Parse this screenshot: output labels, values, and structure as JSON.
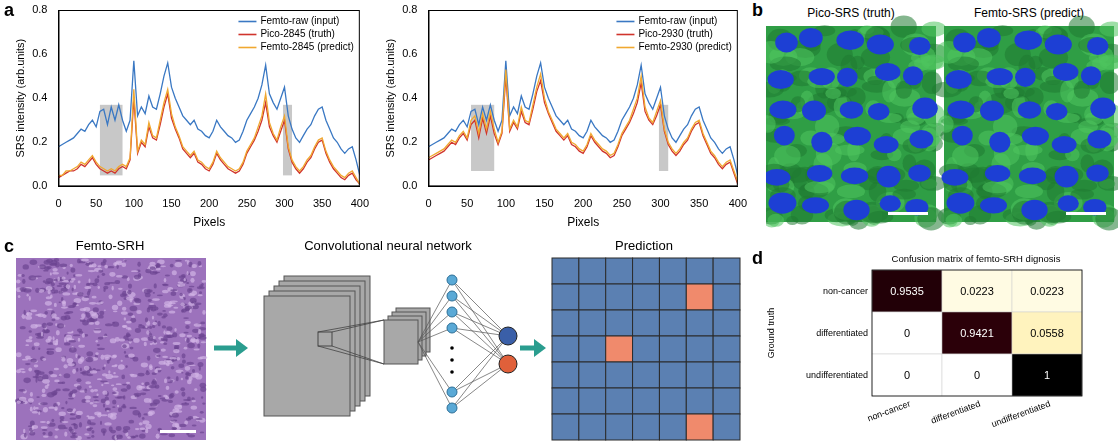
{
  "chart_data": [
    {
      "panel": "a",
      "type": "line",
      "xlabel": "Pixels",
      "ylabel": "SRS intensity (arb.units)",
      "xlim": [
        0,
        400
      ],
      "xticks": [
        0,
        50,
        100,
        150,
        200,
        250,
        300,
        350,
        400
      ],
      "ylim": [
        0,
        0.8
      ],
      "yticks": [
        {
          "value": 0,
          "label": "0.0"
        },
        0.2,
        0.4,
        0.6,
        0.8
      ],
      "grid": false,
      "legend": "upper right",
      "highlight_regions": [
        {
          "x": [
            55,
            85
          ],
          "y": [
            0.05,
            0.37
          ]
        },
        {
          "x": [
            298,
            310
          ],
          "y": [
            0.05,
            0.37
          ]
        }
      ],
      "x": [
        0,
        5,
        10,
        15,
        20,
        25,
        30,
        35,
        40,
        45,
        50,
        55,
        60,
        65,
        70,
        75,
        80,
        85,
        90,
        95,
        100,
        105,
        110,
        115,
        120,
        125,
        130,
        135,
        140,
        145,
        150,
        155,
        160,
        165,
        170,
        175,
        180,
        185,
        190,
        195,
        200,
        205,
        210,
        215,
        220,
        225,
        230,
        235,
        240,
        245,
        250,
        255,
        260,
        265,
        270,
        275,
        280,
        285,
        290,
        295,
        300,
        305,
        310,
        315,
        320,
        325,
        330,
        335,
        340,
        345,
        350,
        355,
        360,
        365,
        370,
        375,
        380,
        385,
        390,
        395,
        400
      ],
      "series": [
        {
          "name": "Femto-raw (input)",
          "color": "#3a78c3",
          "values": [
            0.18,
            0.19,
            0.2,
            0.21,
            0.22,
            0.24,
            0.26,
            0.25,
            0.28,
            0.3,
            0.27,
            0.34,
            0.35,
            0.28,
            0.36,
            0.3,
            0.37,
            0.3,
            0.25,
            0.3,
            0.57,
            0.32,
            0.36,
            0.33,
            0.41,
            0.36,
            0.35,
            0.42,
            0.5,
            0.56,
            0.45,
            0.4,
            0.36,
            0.32,
            0.3,
            0.28,
            0.3,
            0.26,
            0.25,
            0.23,
            0.22,
            0.25,
            0.3,
            0.27,
            0.25,
            0.23,
            0.22,
            0.2,
            0.21,
            0.25,
            0.3,
            0.33,
            0.36,
            0.4,
            0.46,
            0.55,
            0.42,
            0.38,
            0.35,
            0.4,
            0.45,
            0.32,
            0.26,
            0.22,
            0.2,
            0.23,
            0.26,
            0.28,
            0.32,
            0.35,
            0.36,
            0.3,
            0.26,
            0.22,
            0.2,
            0.17,
            0.15,
            0.17,
            0.18,
            0.12,
            0.05
          ]
        },
        {
          "name": "Pico-2845 (truth)",
          "color": "#d0342c",
          "values": [
            0.04,
            0.05,
            0.06,
            0.07,
            0.07,
            0.08,
            0.1,
            0.09,
            0.11,
            0.13,
            0.1,
            0.08,
            0.07,
            0.06,
            0.07,
            0.06,
            0.08,
            0.09,
            0.08,
            0.12,
            0.4,
            0.15,
            0.2,
            0.18,
            0.27,
            0.22,
            0.21,
            0.28,
            0.36,
            0.42,
            0.31,
            0.26,
            0.22,
            0.17,
            0.15,
            0.13,
            0.15,
            0.11,
            0.1,
            0.08,
            0.07,
            0.1,
            0.15,
            0.12,
            0.1,
            0.08,
            0.07,
            0.06,
            0.07,
            0.1,
            0.15,
            0.18,
            0.21,
            0.25,
            0.3,
            0.38,
            0.27,
            0.23,
            0.2,
            0.25,
            0.3,
            0.17,
            0.11,
            0.08,
            0.06,
            0.08,
            0.11,
            0.13,
            0.17,
            0.2,
            0.21,
            0.15,
            0.11,
            0.08,
            0.06,
            0.04,
            0.03,
            0.05,
            0.06,
            0.03,
            0.01
          ]
        },
        {
          "name": "Femto-2845 (predict)",
          "color": "#f0a830",
          "values": [
            0.05,
            0.05,
            0.07,
            0.07,
            0.08,
            0.09,
            0.11,
            0.1,
            0.12,
            0.14,
            0.11,
            0.09,
            0.08,
            0.07,
            0.08,
            0.07,
            0.09,
            0.1,
            0.09,
            0.13,
            0.44,
            0.16,
            0.21,
            0.19,
            0.29,
            0.23,
            0.22,
            0.3,
            0.38,
            0.44,
            0.33,
            0.27,
            0.23,
            0.18,
            0.16,
            0.14,
            0.16,
            0.12,
            0.11,
            0.09,
            0.08,
            0.11,
            0.16,
            0.13,
            0.11,
            0.09,
            0.08,
            0.07,
            0.08,
            0.11,
            0.16,
            0.19,
            0.22,
            0.27,
            0.32,
            0.42,
            0.29,
            0.24,
            0.21,
            0.27,
            0.32,
            0.18,
            0.12,
            0.09,
            0.07,
            0.09,
            0.12,
            0.14,
            0.18,
            0.21,
            0.22,
            0.16,
            0.12,
            0.09,
            0.07,
            0.05,
            0.04,
            0.06,
            0.07,
            0.04,
            0.01
          ]
        }
      ]
    },
    {
      "type": "line",
      "xlabel": "Pixels",
      "ylabel": "SRS intensity (arb.units)",
      "xlim": [
        0,
        400
      ],
      "xticks": [
        0,
        50,
        100,
        150,
        200,
        250,
        300,
        350,
        400
      ],
      "ylim": [
        0,
        0.8
      ],
      "yticks": [
        {
          "value": 0,
          "label": "0.0"
        },
        0.2,
        0.4,
        0.6,
        0.8
      ],
      "grid": false,
      "legend": "upper right",
      "highlight_regions": [
        {
          "x": [
            55,
            85
          ],
          "y": [
            0.07,
            0.37
          ]
        },
        {
          "x": [
            298,
            310
          ],
          "y": [
            0.07,
            0.37
          ]
        }
      ],
      "x": [
        0,
        5,
        10,
        15,
        20,
        25,
        30,
        35,
        40,
        45,
        50,
        55,
        60,
        65,
        70,
        75,
        80,
        85,
        90,
        95,
        100,
        105,
        110,
        115,
        120,
        125,
        130,
        135,
        140,
        145,
        150,
        155,
        160,
        165,
        170,
        175,
        180,
        185,
        190,
        195,
        200,
        205,
        210,
        215,
        220,
        225,
        230,
        235,
        240,
        245,
        250,
        255,
        260,
        265,
        270,
        275,
        280,
        285,
        290,
        295,
        300,
        305,
        310,
        315,
        320,
        325,
        330,
        335,
        340,
        345,
        350,
        355,
        360,
        365,
        370,
        375,
        380,
        385,
        390,
        395,
        400
      ],
      "series": [
        {
          "name": "Femto-raw (input)",
          "color": "#3a78c3",
          "values": [
            0.18,
            0.19,
            0.2,
            0.21,
            0.22,
            0.24,
            0.26,
            0.25,
            0.28,
            0.3,
            0.27,
            0.34,
            0.35,
            0.28,
            0.36,
            0.3,
            0.37,
            0.3,
            0.25,
            0.3,
            0.57,
            0.32,
            0.36,
            0.33,
            0.41,
            0.36,
            0.35,
            0.42,
            0.5,
            0.56,
            0.45,
            0.4,
            0.36,
            0.32,
            0.3,
            0.28,
            0.3,
            0.26,
            0.25,
            0.23,
            0.22,
            0.25,
            0.3,
            0.27,
            0.25,
            0.23,
            0.22,
            0.2,
            0.21,
            0.25,
            0.3,
            0.33,
            0.36,
            0.4,
            0.46,
            0.55,
            0.42,
            0.38,
            0.35,
            0.4,
            0.45,
            0.32,
            0.26,
            0.22,
            0.2,
            0.23,
            0.26,
            0.28,
            0.32,
            0.35,
            0.36,
            0.3,
            0.26,
            0.22,
            0.2,
            0.17,
            0.15,
            0.17,
            0.18,
            0.12,
            0.05
          ]
        },
        {
          "name": "Pico-2930 (truth)",
          "color": "#d0342c",
          "values": [
            0.12,
            0.13,
            0.14,
            0.15,
            0.16,
            0.18,
            0.2,
            0.19,
            0.22,
            0.24,
            0.21,
            0.28,
            0.3,
            0.22,
            0.31,
            0.24,
            0.32,
            0.24,
            0.19,
            0.24,
            0.5,
            0.25,
            0.29,
            0.26,
            0.34,
            0.29,
            0.28,
            0.35,
            0.43,
            0.48,
            0.38,
            0.33,
            0.29,
            0.25,
            0.23,
            0.21,
            0.23,
            0.19,
            0.18,
            0.16,
            0.15,
            0.18,
            0.23,
            0.2,
            0.18,
            0.16,
            0.15,
            0.13,
            0.14,
            0.18,
            0.23,
            0.26,
            0.29,
            0.33,
            0.38,
            0.47,
            0.34,
            0.3,
            0.28,
            0.32,
            0.37,
            0.25,
            0.19,
            0.16,
            0.14,
            0.16,
            0.19,
            0.21,
            0.25,
            0.28,
            0.29,
            0.23,
            0.19,
            0.15,
            0.13,
            0.1,
            0.08,
            0.1,
            0.11,
            0.06,
            0.01
          ]
        },
        {
          "name": "Femto-2930 (predict)",
          "color": "#f0a830",
          "values": [
            0.13,
            0.14,
            0.15,
            0.16,
            0.17,
            0.19,
            0.21,
            0.2,
            0.23,
            0.25,
            0.22,
            0.3,
            0.32,
            0.24,
            0.33,
            0.26,
            0.34,
            0.26,
            0.2,
            0.25,
            0.53,
            0.26,
            0.3,
            0.27,
            0.36,
            0.3,
            0.29,
            0.37,
            0.45,
            0.51,
            0.4,
            0.34,
            0.3,
            0.26,
            0.24,
            0.22,
            0.24,
            0.2,
            0.19,
            0.17,
            0.16,
            0.19,
            0.24,
            0.21,
            0.19,
            0.17,
            0.16,
            0.14,
            0.15,
            0.19,
            0.24,
            0.27,
            0.3,
            0.35,
            0.4,
            0.5,
            0.36,
            0.31,
            0.29,
            0.34,
            0.39,
            0.26,
            0.2,
            0.17,
            0.15,
            0.17,
            0.2,
            0.22,
            0.26,
            0.29,
            0.3,
            0.24,
            0.2,
            0.16,
            0.14,
            0.11,
            0.09,
            0.11,
            0.12,
            0.07,
            0.02
          ]
        }
      ]
    },
    {
      "panel": "d",
      "type": "heatmap",
      "title": "Confusion matrix of femto-SRH dignosis",
      "ylabel": "Ground truth",
      "x_categories": [
        "non-cancer",
        "differentiated",
        "undifferentiated"
      ],
      "y_categories": [
        "non-cancer",
        "differentiated",
        "undifferentiated"
      ],
      "cells": [
        [
          0.9535,
          0.0223,
          0.0223
        ],
        [
          0,
          0.9421,
          0.0558
        ],
        [
          0,
          0,
          1
        ]
      ],
      "data_labels": true
    }
  ],
  "figure": {
    "b": {
      "panel": "b",
      "images": [
        {
          "title": "Pico-SRS (truth)"
        },
        {
          "title": "Femto-SRS (predict)"
        }
      ]
    },
    "c": {
      "panel": "c",
      "input": "Femto-SRH",
      "network": "Convolutional neural network",
      "output": "Prediction",
      "grid_rows": 7,
      "grid_cols": 7,
      "positive_cells": [
        [
          1,
          5
        ],
        [
          3,
          2
        ],
        [
          6,
          5
        ]
      ]
    }
  }
}
